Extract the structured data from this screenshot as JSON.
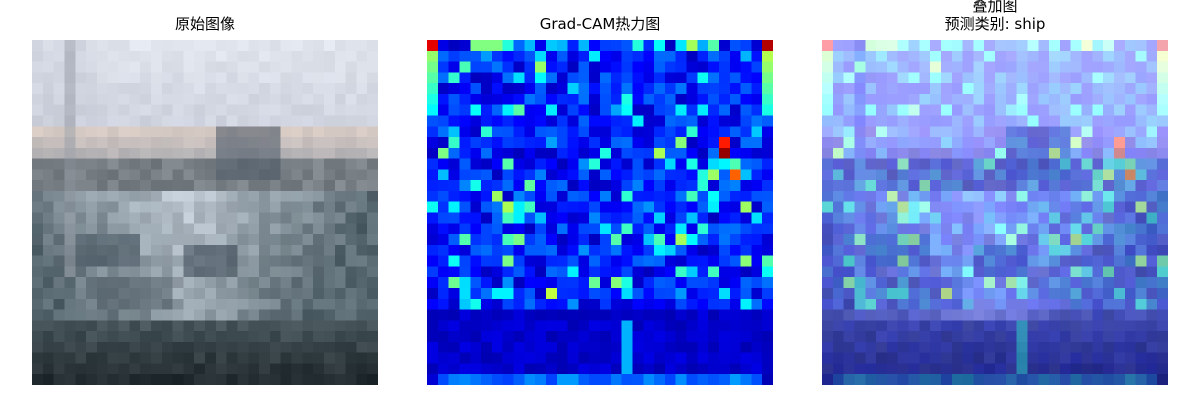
{
  "panels": [
    {
      "id": "original",
      "title": "原始图像"
    },
    {
      "id": "gradcam",
      "title": "Grad-CAM热力图"
    },
    {
      "id": "overlay",
      "title_line1": "叠加图",
      "title_line2": "预测类别: ship"
    }
  ],
  "prediction": {
    "label": "预测类别",
    "class": "ship"
  },
  "image": {
    "grid": 32,
    "subject": "ship"
  },
  "colormap": "jet"
}
